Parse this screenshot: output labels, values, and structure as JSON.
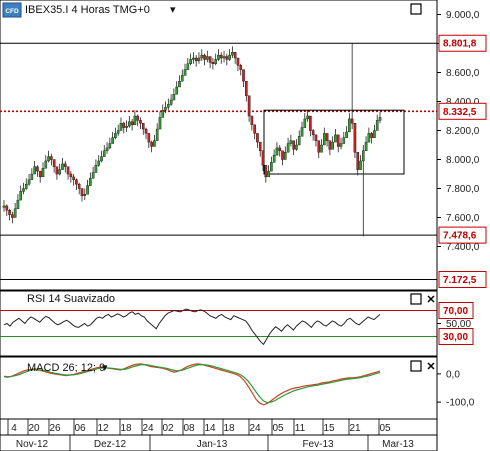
{
  "header": {
    "title": "IBEX35.I 4 Horas TMG+0",
    "dropdown_glyph": "▾",
    "logo_text": "CFD"
  },
  "chart_data": [
    {
      "type": "candlestick",
      "title": "IBEX35.I 4 Horas TMG+0",
      "ylim": [
        7100,
        9100
      ],
      "y_ticks": [
        9000,
        8800,
        8600,
        8400,
        8200,
        8000,
        7800,
        7600,
        7400
      ],
      "y_tick_labels": [
        "9.000,0",
        "8.800,0",
        "8.600,0",
        "8.400,0",
        "8.200,0",
        "8.000,0",
        "7.800,0",
        "7.600,0",
        "7.400,0"
      ],
      "price_tags": [
        {
          "label": "8.801,8",
          "value": 8801.8,
          "style": "hline"
        },
        {
          "label": "8.332,5",
          "value": 8332.5,
          "style": "dotted-red"
        },
        {
          "label": "7.478,6",
          "value": 7478.6,
          "style": "hline"
        },
        {
          "label": "7.172,5",
          "value": 7172.5,
          "style": "hline"
        }
      ],
      "range_box": {
        "y_low": 7900,
        "y_high": 8340
      },
      "close": [
        7680,
        7650,
        7620,
        7600,
        7660,
        7720,
        7780,
        7800,
        7830,
        7860,
        7900,
        7950,
        7920,
        7880,
        7940,
        7990,
        8020,
        8000,
        7950,
        7900,
        7930,
        7970,
        7950,
        7900,
        7880,
        7860,
        7830,
        7800,
        7750,
        7760,
        7820,
        7870,
        7910,
        7960,
        7990,
        8020,
        8060,
        8080,
        8110,
        8150,
        8180,
        8200,
        8250,
        8220,
        8230,
        8260,
        8240,
        8300,
        8270,
        8250,
        8210,
        8180,
        8120,
        8090,
        8130,
        8210,
        8290,
        8340,
        8360,
        8380,
        8410,
        8450,
        8500,
        8540,
        8580,
        8620,
        8660,
        8690,
        8700,
        8680,
        8700,
        8720,
        8690,
        8710,
        8670,
        8660,
        8690,
        8720,
        8700,
        8710,
        8690,
        8720,
        8740,
        8700,
        8650,
        8620,
        8540,
        8440,
        8300,
        8240,
        8180,
        8120,
        8060,
        7960,
        7880,
        7920,
        7980,
        8030,
        8080,
        8060,
        8000,
        8050,
        8110,
        8130,
        8070,
        8100,
        8160,
        8220,
        8280,
        8300,
        8200,
        8170,
        8130,
        8050,
        8100,
        8180,
        8130,
        8070,
        8120,
        8170,
        8090,
        8110,
        8150,
        8190,
        8280,
        8250,
        8050,
        7930,
        7990,
        8060,
        8120,
        8180,
        8150,
        8200,
        8270,
        8290
      ],
      "high": [
        7720,
        7690,
        7660,
        7640,
        7700,
        7760,
        7820,
        7840,
        7870,
        7900,
        7940,
        7990,
        7960,
        7920,
        7980,
        8030,
        8060,
        8040,
        7990,
        7940,
        7970,
        8010,
        7990,
        7940,
        7920,
        7900,
        7870,
        7840,
        7790,
        7800,
        7860,
        7910,
        7950,
        8000,
        8030,
        8060,
        8100,
        8120,
        8150,
        8190,
        8220,
        8240,
        8290,
        8260,
        8270,
        8300,
        8280,
        8340,
        8310,
        8290,
        8250,
        8220,
        8160,
        8130,
        8170,
        8250,
        8330,
        8380,
        8400,
        8420,
        8450,
        8490,
        8540,
        8580,
        8620,
        8660,
        8700,
        8730,
        8740,
        8720,
        8740,
        8760,
        8730,
        8750,
        8710,
        8700,
        8730,
        8760,
        8740,
        8750,
        8730,
        8760,
        8780,
        8740,
        8690,
        8660,
        8580,
        8480,
        8340,
        8280,
        8220,
        8160,
        8100,
        8000,
        7920,
        7960,
        8020,
        8070,
        8120,
        8100,
        8040,
        8090,
        8150,
        8170,
        8110,
        8140,
        8200,
        8260,
        8320,
        8340,
        8240,
        8210,
        8170,
        8090,
        8140,
        8220,
        8170,
        8110,
        8160,
        8210,
        8130,
        8150,
        8190,
        8230,
        8320,
        8800,
        8090,
        7970,
        8030,
        8100,
        8160,
        8220,
        8190,
        8240,
        8310,
        8330
      ],
      "low": [
        7640,
        7610,
        7580,
        7560,
        7620,
        7680,
        7740,
        7760,
        7790,
        7820,
        7860,
        7910,
        7880,
        7840,
        7900,
        7950,
        7980,
        7960,
        7910,
        7860,
        7890,
        7930,
        7910,
        7860,
        7840,
        7820,
        7790,
        7760,
        7710,
        7720,
        7780,
        7830,
        7870,
        7920,
        7950,
        7980,
        8020,
        8040,
        8070,
        8110,
        8140,
        8160,
        8210,
        8180,
        8190,
        8220,
        8200,
        8260,
        8230,
        8210,
        8170,
        8140,
        8080,
        8050,
        8090,
        8170,
        8250,
        8300,
        8320,
        8340,
        8370,
        8410,
        8460,
        8500,
        8540,
        8580,
        8620,
        8650,
        8660,
        8640,
        8660,
        8680,
        8650,
        8670,
        8630,
        8620,
        8650,
        8680,
        8660,
        8670,
        8650,
        8680,
        8700,
        8660,
        8610,
        8580,
        8500,
        8400,
        8260,
        8200,
        8140,
        8080,
        8020,
        7920,
        7840,
        7880,
        7940,
        7990,
        8040,
        8020,
        7960,
        8010,
        8070,
        8090,
        8030,
        8060,
        8120,
        8180,
        8240,
        8260,
        8160,
        8130,
        8090,
        8010,
        8060,
        8140,
        8090,
        8030,
        8080,
        8130,
        8050,
        8070,
        8110,
        8150,
        8240,
        8210,
        8010,
        7890,
        7950,
        7470,
        8080,
        8140,
        8110,
        8160,
        8230,
        8250
      ]
    },
    {
      "type": "line",
      "title": "RSI 14 Suavizado",
      "ylim": [
        0,
        100
      ],
      "levels": [
        {
          "label": "70,00",
          "value": 70
        },
        {
          "label": "30,00",
          "value": 30
        }
      ],
      "y_ticks": [
        50
      ],
      "y_tick_labels": [
        "50,00"
      ],
      "series": [
        {
          "name": "RSI 14 Suavizado",
          "values": [
            48,
            50,
            46,
            52,
            55,
            58,
            54,
            50,
            56,
            60,
            58,
            55,
            52,
            57,
            61,
            59,
            55,
            51,
            48,
            50,
            53,
            55,
            52,
            48,
            45,
            44,
            47,
            50,
            46,
            48,
            53,
            58,
            60,
            58,
            62,
            64,
            60,
            62,
            65,
            63,
            60,
            62,
            66,
            68,
            64,
            66,
            62,
            60,
            54,
            50,
            46,
            42,
            50,
            56,
            62,
            66,
            68,
            70,
            69,
            68,
            70,
            72,
            71,
            69,
            68,
            70,
            71,
            69,
            66,
            62,
            60,
            58,
            62,
            64,
            60,
            58,
            56,
            62,
            60,
            58,
            56,
            54,
            48,
            40,
            34,
            28,
            22,
            18,
            26,
            34,
            40,
            45,
            42,
            38,
            44,
            48,
            44,
            40,
            46,
            50,
            54,
            52,
            48,
            44,
            50,
            54,
            52,
            48,
            46,
            50,
            54,
            52,
            48,
            46,
            50,
            56,
            58,
            54,
            50,
            48,
            52,
            56,
            60,
            58,
            56,
            60,
            64
          ]
        }
      ]
    },
    {
      "type": "line",
      "title": "MACD 26; 12; 9",
      "ylim": [
        -160,
        60
      ],
      "y_ticks": [
        0,
        -100
      ],
      "y_tick_labels": [
        "0,0",
        "-100,0"
      ],
      "series": [
        {
          "name": "MACD",
          "values": [
            -10,
            -12,
            -8,
            -2,
            4,
            10,
            14,
            16,
            18,
            14,
            10,
            6,
            2,
            0,
            -2,
            -4,
            -6,
            -4,
            -2,
            2,
            6,
            10,
            14,
            18,
            22,
            24,
            22,
            20,
            18,
            16,
            14,
            18,
            24,
            30,
            34,
            36,
            34,
            30,
            26,
            24,
            22,
            20,
            16,
            10,
            6,
            10,
            16,
            24,
            30,
            34,
            36,
            34,
            30,
            26,
            22,
            18,
            14,
            10,
            6,
            2,
            -2,
            -10,
            -24,
            -44,
            -66,
            -90,
            -104,
            -110,
            -104,
            -94,
            -84,
            -74,
            -66,
            -60,
            -54,
            -50,
            -48,
            -44,
            -42,
            -40,
            -38,
            -36,
            -32,
            -30,
            -28,
            -24,
            -22,
            -18,
            -16,
            -14,
            -14,
            -12,
            -10,
            -6,
            -2,
            2,
            6,
            10
          ]
        },
        {
          "name": "Signal",
          "values": [
            -8,
            -10,
            -9,
            -6,
            -2,
            4,
            9,
            13,
            15,
            15,
            13,
            10,
            6,
            3,
            0,
            -2,
            -4,
            -4,
            -3,
            -1,
            2,
            6,
            10,
            14,
            18,
            21,
            22,
            21,
            20,
            18,
            16,
            16,
            19,
            24,
            28,
            32,
            33,
            32,
            29,
            27,
            24,
            22,
            20,
            16,
            12,
            11,
            13,
            18,
            23,
            28,
            32,
            33,
            32,
            30,
            27,
            23,
            19,
            15,
            11,
            7,
            3,
            -3,
            -12,
            -26,
            -44,
            -64,
            -82,
            -96,
            -102,
            -100,
            -94,
            -86,
            -78,
            -71,
            -65,
            -59,
            -55,
            -51,
            -47,
            -44,
            -42,
            -40,
            -37,
            -34,
            -32,
            -29,
            -26,
            -23,
            -20,
            -18,
            -17,
            -15,
            -13,
            -10,
            -7,
            -3,
            1,
            5
          ]
        }
      ]
    }
  ],
  "x_axis": {
    "day_labels": [
      "4",
      "20",
      "26",
      "06",
      "12",
      "18",
      "24",
      "02",
      "08",
      "14",
      "18",
      "24",
      "05",
      "11",
      "15",
      "21",
      "05"
    ],
    "month_labels": [
      "Nov-12",
      "Dez-12",
      "Jan-13",
      "Fev-13",
      "Mar-13"
    ]
  },
  "pane_controls": {
    "restore_icon": "□",
    "close_icon": "✕"
  },
  "colors": {
    "up_candle": "#2e9e2e",
    "down_candle": "#cc2222",
    "wick": "#222222",
    "price_tag": "#c00000",
    "rsi_line": "#222222",
    "level_upper": "#c00000",
    "level_lower": "#2a8a2a",
    "macd_line": "#d04020",
    "signal_line": "#2a9a3a"
  }
}
